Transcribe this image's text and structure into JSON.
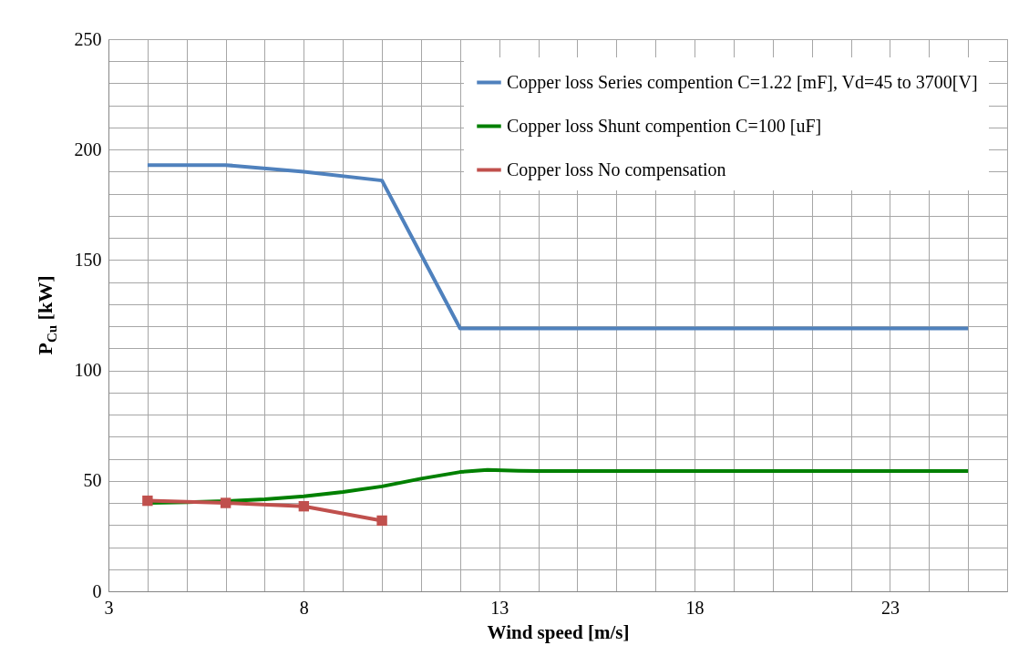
{
  "chart_data": {
    "type": "line",
    "xlabel": "Wind speed [m/s]",
    "ylabel": "P$_{Cu}$ [kW]",
    "xlim": [
      3,
      26
    ],
    "ylim": [
      0,
      250
    ],
    "xticks": [
      3,
      {
        "value": 4,
        "label": null
      },
      {
        "value": 5,
        "label": null
      },
      {
        "value": 6,
        "label": null
      },
      {
        "value": 7,
        "label": null
      },
      8,
      {
        "value": 9,
        "label": null
      },
      {
        "value": 10,
        "label": null
      },
      {
        "value": 11,
        "label": null
      },
      {
        "value": 12,
        "label": null
      },
      13,
      {
        "value": 14,
        "label": null
      },
      {
        "value": 15,
        "label": null
      },
      {
        "value": 16,
        "label": null
      },
      {
        "value": 17,
        "label": null
      },
      18,
      {
        "value": 19,
        "label": null
      },
      {
        "value": 20,
        "label": null
      },
      {
        "value": 21,
        "label": null
      },
      {
        "value": 22,
        "label": null
      },
      23,
      {
        "value": 24,
        "label": null
      },
      {
        "value": 25,
        "label": null
      },
      {
        "value": 26,
        "label": null
      }
    ],
    "yticks": [
      0,
      {
        "value": 10,
        "label": null
      },
      {
        "value": 20,
        "label": null
      },
      {
        "value": 30,
        "label": null
      },
      {
        "value": 40,
        "label": null
      },
      50,
      {
        "value": 60,
        "label": null
      },
      {
        "value": 70,
        "label": null
      },
      {
        "value": 80,
        "label": null
      },
      {
        "value": 90,
        "label": null
      },
      100,
      {
        "value": 110,
        "label": null
      },
      {
        "value": 120,
        "label": null
      },
      {
        "value": 130,
        "label": null
      },
      {
        "value": 140,
        "label": null
      },
      150,
      {
        "value": 160,
        "label": null
      },
      {
        "value": 170,
        "label": null
      },
      {
        "value": 180,
        "label": null
      },
      {
        "value": 190,
        "label": null
      },
      200,
      {
        "value": 210,
        "label": null
      },
      {
        "value": 220,
        "label": null
      },
      {
        "value": 230,
        "label": null
      },
      {
        "value": 240,
        "label": null
      },
      250
    ],
    "grid": true,
    "legend": "top right",
    "line_style": "solid",
    "series": [
      {
        "name": "Copper loss Series compention C=1.22 [mF], Vd=45 to 3700[V]",
        "color": "#4f81bd",
        "marker": "none",
        "x": [
          4,
          6,
          8,
          10,
          12,
          25
        ],
        "values": [
          193,
          193,
          190,
          186,
          119,
          119
        ]
      },
      {
        "name": "Copper loss Shunt compention C=100 [uF]",
        "color": "#008000",
        "marker": "none",
        "x": [
          4,
          5,
          6,
          7,
          8,
          9,
          10,
          11,
          12,
          12.7,
          13.5,
          14,
          25
        ],
        "values": [
          40,
          40.3,
          40.8,
          41.7,
          43,
          45,
          47.5,
          51,
          54,
          55,
          54.6,
          54.5,
          54.5
        ]
      },
      {
        "name": "Copper loss No compensation",
        "color": "#c0504d",
        "marker": "square",
        "x": [
          4,
          6,
          8,
          10
        ],
        "values": [
          41,
          40,
          38.5,
          32
        ]
      }
    ]
  }
}
